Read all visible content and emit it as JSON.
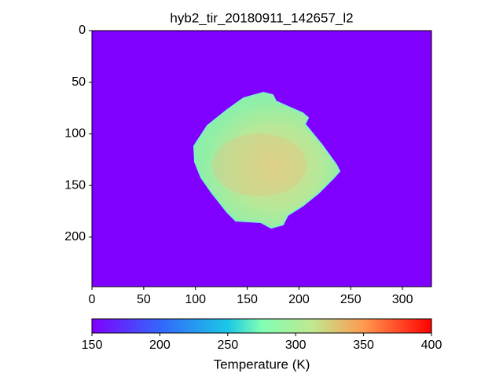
{
  "chart_data": {
    "type": "heatmap",
    "title": "hyb2_tir_20180911_142657_l2",
    "xlim": [
      0,
      328
    ],
    "ylim": [
      248,
      0
    ],
    "xticks": [
      0,
      50,
      100,
      150,
      200,
      250,
      300
    ],
    "yticks": [
      0,
      50,
      100,
      150,
      200
    ],
    "colormap": "rainbow",
    "colorbar": {
      "label": "Temperature (K)",
      "clim": [
        150,
        400
      ],
      "ticks": [
        150,
        200,
        250,
        300,
        350,
        400
      ]
    }
  }
}
